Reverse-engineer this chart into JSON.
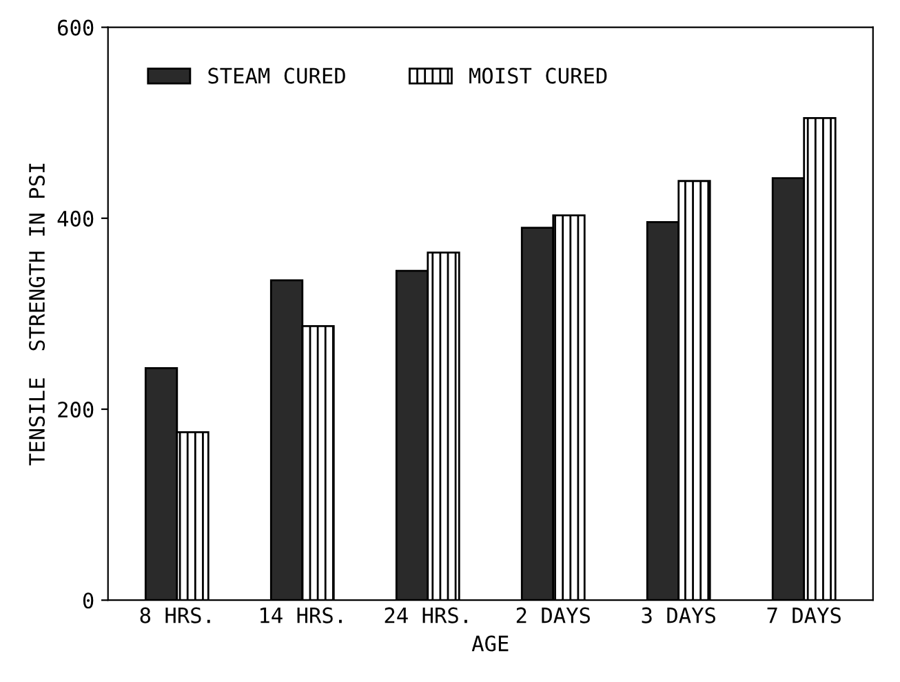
{
  "chart_data": {
    "type": "bar",
    "xlabel": "AGE",
    "ylabel": "TENSILE  STRENGTH IN PSI",
    "categories": [
      "8 HRS.",
      "14 HRS.",
      "24 HRS.",
      "2 DAYS",
      "3 DAYS",
      "7 DAYS"
    ],
    "series": [
      {
        "name": "STEAM CURED",
        "color": "#2a2a2a",
        "values": [
          243,
          335,
          345,
          390,
          396,
          442
        ]
      },
      {
        "name": "MOIST CURED",
        "color": "#000000",
        "values": [
          176,
          287,
          364,
          403,
          439,
          505
        ]
      }
    ],
    "ylim": [
      0,
      600
    ],
    "yticks": [
      0,
      200,
      400,
      600
    ],
    "grid": false,
    "legend": "top left"
  }
}
